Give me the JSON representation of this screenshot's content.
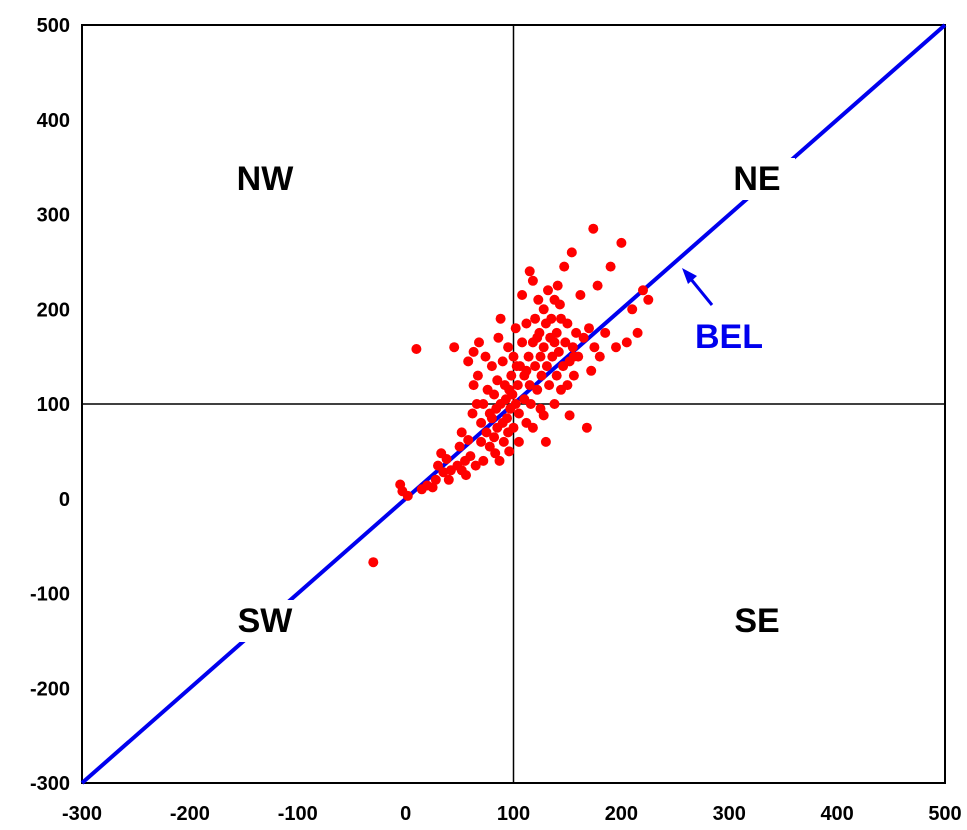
{
  "chart_data": {
    "type": "scatter",
    "title": "",
    "xlabel": "",
    "ylabel": "",
    "xlim": [
      -300,
      500
    ],
    "ylim": [
      -300,
      500
    ],
    "x_ticks": [
      "-300",
      "-200",
      "-100",
      "0",
      "100",
      "200",
      "300",
      "400",
      "500"
    ],
    "y_ticks": [
      "500",
      "400",
      "300",
      "200",
      "100",
      "0",
      "-100",
      "-200",
      "-300"
    ],
    "quadrant_lines": {
      "x": 100,
      "y": 100
    },
    "quadrant_labels": {
      "nw": "NW",
      "ne": "NE",
      "sw": "SW",
      "se": "SE"
    },
    "line": {
      "label": "BEL",
      "from": [
        -300,
        -300
      ],
      "to": [
        500,
        500
      ],
      "color": "#0000ee"
    },
    "point_color": "#ff0000",
    "points": [
      [
        -30,
        -67
      ],
      [
        -5,
        15
      ],
      [
        -3,
        8
      ],
      [
        2,
        3
      ],
      [
        10,
        158
      ],
      [
        15,
        10
      ],
      [
        20,
        14
      ],
      [
        25,
        12
      ],
      [
        28,
        20
      ],
      [
        30,
        35
      ],
      [
        33,
        48
      ],
      [
        35,
        28
      ],
      [
        38,
        42
      ],
      [
        40,
        20
      ],
      [
        42,
        30
      ],
      [
        45,
        160
      ],
      [
        48,
        35
      ],
      [
        50,
        55
      ],
      [
        52,
        30
      ],
      [
        52,
        70
      ],
      [
        55,
        40
      ],
      [
        56,
        25
      ],
      [
        58,
        62
      ],
      [
        60,
        45
      ],
      [
        62,
        90
      ],
      [
        63,
        120
      ],
      [
        65,
        35
      ],
      [
        66,
        100
      ],
      [
        67,
        130
      ],
      [
        68,
        165
      ],
      [
        70,
        60
      ],
      [
        70,
        80
      ],
      [
        72,
        40
      ],
      [
        72,
        100
      ],
      [
        74,
        150
      ],
      [
        75,
        70
      ],
      [
        76,
        115
      ],
      [
        78,
        90
      ],
      [
        78,
        55
      ],
      [
        80,
        85
      ],
      [
        80,
        140
      ],
      [
        82,
        110
      ],
      [
        82,
        65
      ],
      [
        84,
        95
      ],
      [
        85,
        75
      ],
      [
        85,
        125
      ],
      [
        86,
        170
      ],
      [
        87,
        40
      ],
      [
        88,
        100
      ],
      [
        88,
        190
      ],
      [
        90,
        80
      ],
      [
        90,
        145
      ],
      [
        91,
        60
      ],
      [
        92,
        120
      ],
      [
        93,
        105
      ],
      [
        94,
        85
      ],
      [
        95,
        70
      ],
      [
        95,
        160
      ],
      [
        96,
        50
      ],
      [
        97,
        95
      ],
      [
        98,
        130
      ],
      [
        99,
        110
      ],
      [
        100,
        75
      ],
      [
        100,
        150
      ],
      [
        102,
        100
      ],
      [
        102,
        180
      ],
      [
        104,
        120
      ],
      [
        105,
        90
      ],
      [
        105,
        60
      ],
      [
        106,
        140
      ],
      [
        108,
        215
      ],
      [
        108,
        165
      ],
      [
        110,
        130
      ],
      [
        110,
        105
      ],
      [
        112,
        80
      ],
      [
        112,
        185
      ],
      [
        114,
        150
      ],
      [
        115,
        240
      ],
      [
        115,
        120
      ],
      [
        116,
        100
      ],
      [
        118,
        165
      ],
      [
        118,
        230
      ],
      [
        120,
        140
      ],
      [
        120,
        190
      ],
      [
        122,
        115
      ],
      [
        123,
        210
      ],
      [
        124,
        175
      ],
      [
        125,
        150
      ],
      [
        125,
        95
      ],
      [
        126,
        130
      ],
      [
        128,
        200
      ],
      [
        128,
        160
      ],
      [
        130,
        60
      ],
      [
        130,
        185
      ],
      [
        131,
        140
      ],
      [
        132,
        220
      ],
      [
        133,
        120
      ],
      [
        134,
        170
      ],
      [
        135,
        190
      ],
      [
        136,
        150
      ],
      [
        138,
        100
      ],
      [
        138,
        210
      ],
      [
        140,
        130
      ],
      [
        140,
        175
      ],
      [
        141,
        225
      ],
      [
        142,
        155
      ],
      [
        144,
        115
      ],
      [
        144,
        190
      ],
      [
        146,
        140
      ],
      [
        147,
        245
      ],
      [
        148,
        165
      ],
      [
        150,
        120
      ],
      [
        150,
        185
      ],
      [
        152,
        88
      ],
      [
        152,
        145
      ],
      [
        154,
        260
      ],
      [
        155,
        160
      ],
      [
        156,
        130
      ],
      [
        158,
        175
      ],
      [
        160,
        150
      ],
      [
        162,
        215
      ],
      [
        165,
        170
      ],
      [
        168,
        75
      ],
      [
        170,
        180
      ],
      [
        172,
        135
      ],
      [
        174,
        285
      ],
      [
        175,
        160
      ],
      [
        178,
        225
      ],
      [
        180,
        150
      ],
      [
        185,
        175
      ],
      [
        190,
        245
      ],
      [
        195,
        160
      ],
      [
        200,
        270
      ],
      [
        205,
        165
      ],
      [
        210,
        200
      ],
      [
        215,
        175
      ],
      [
        220,
        220
      ],
      [
        225,
        210
      ],
      [
        58,
        145
      ],
      [
        63,
        155
      ],
      [
        118,
        75
      ],
      [
        128,
        88
      ],
      [
        122,
        170
      ],
      [
        112,
        135
      ],
      [
        96,
        115
      ],
      [
        83,
        48
      ],
      [
        103,
        140
      ],
      [
        138,
        165
      ],
      [
        143,
        205
      ],
      [
        156,
        150
      ]
    ]
  }
}
